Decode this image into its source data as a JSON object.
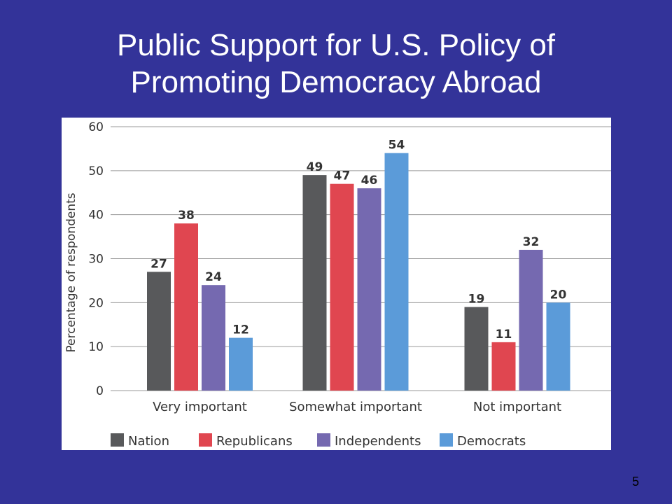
{
  "slide": {
    "title_line1": "Public Support for U.S. Policy of",
    "title_line2": "Promoting Democracy Abroad",
    "page_number": "5",
    "background_color": "#333399"
  },
  "chart_data": {
    "type": "bar",
    "ylabel": "Percentage of respondents",
    "xlabel": "",
    "ylim": [
      0,
      60
    ],
    "yticks": [
      0,
      10,
      20,
      30,
      40,
      50,
      60
    ],
    "grid": true,
    "legend_position": "bottom",
    "categories": [
      "Very important",
      "Somewhat important",
      "Not important"
    ],
    "series": [
      {
        "name": "Nation",
        "color": "#58595b",
        "values": [
          27,
          49,
          19
        ]
      },
      {
        "name": "Republicans",
        "color": "#e04650",
        "values": [
          38,
          47,
          11
        ]
      },
      {
        "name": "Independents",
        "color": "#7569b0",
        "values": [
          24,
          46,
          32
        ]
      },
      {
        "name": "Democrats",
        "color": "#5b9bd9",
        "values": [
          12,
          54,
          20
        ]
      }
    ]
  }
}
